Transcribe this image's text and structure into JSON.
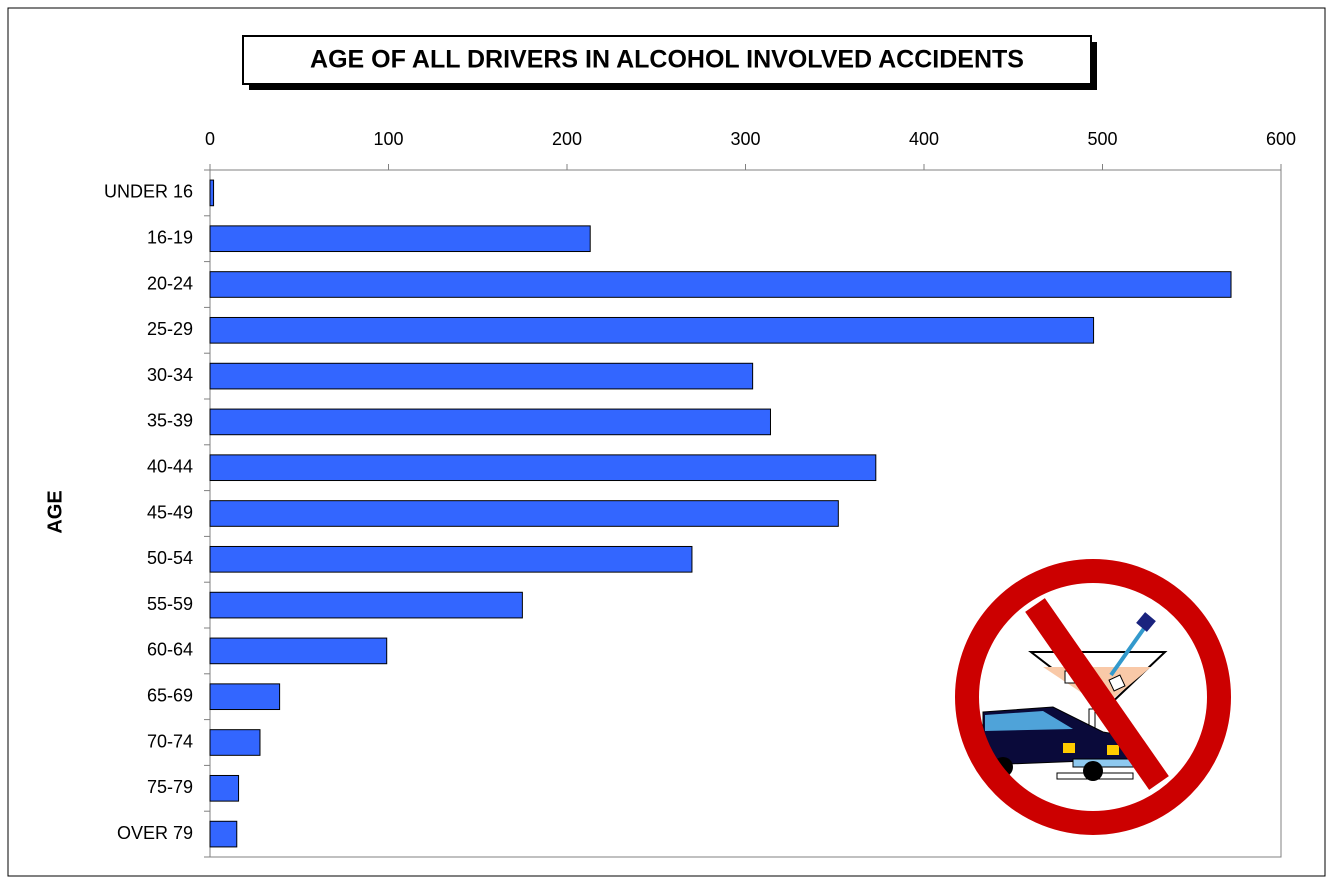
{
  "chart_data": {
    "type": "bar",
    "orientation": "horizontal",
    "title": "AGE OF ALL DRIVERS IN ALCOHOL INVOLVED ACCIDENTS",
    "y_label": "AGE",
    "categories": [
      "UNDER 16",
      "16-19",
      "20-24",
      "25-29",
      "30-34",
      "35-39",
      "40-44",
      "45-49",
      "50-54",
      "55-59",
      "60-64",
      "65-69",
      "70-74",
      "75-79",
      "OVER 79"
    ],
    "values": [
      2,
      213,
      572,
      495,
      304,
      314,
      373,
      352,
      270,
      175,
      99,
      39,
      28,
      16,
      15
    ],
    "color": "#3366ff",
    "xlim": [
      0,
      600
    ],
    "xticks": [
      0,
      100,
      200,
      300,
      400,
      500,
      600
    ],
    "grid": false
  }
}
